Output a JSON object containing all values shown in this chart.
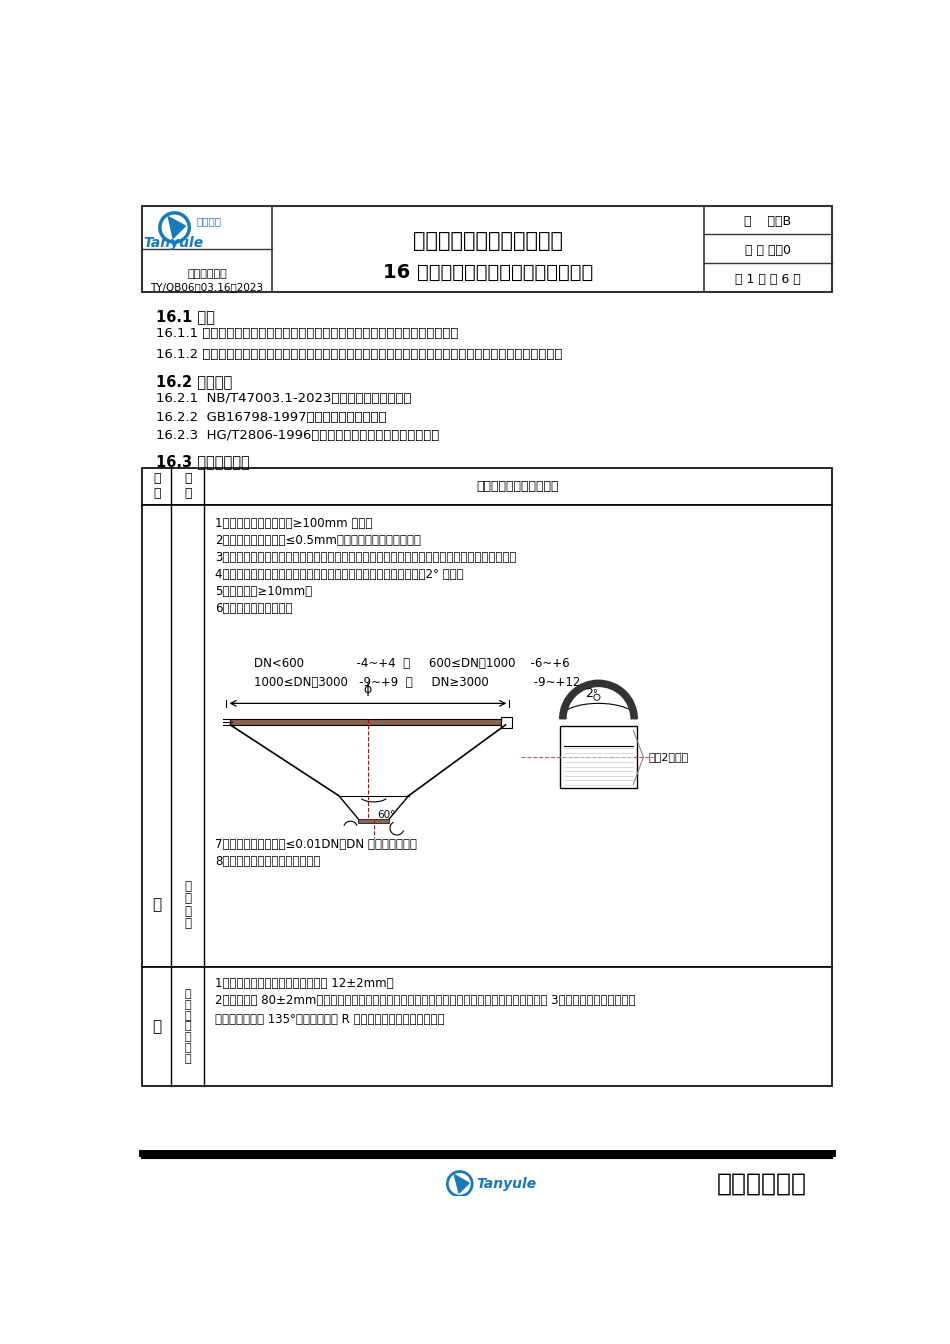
{
  "page_width": 9.5,
  "page_height": 13.44,
  "bg_color": "#ffffff",
  "header": {
    "title_main": "压力容器制造通用工艺守则",
    "title_sub": "16 不锈钢罐（食品类）工序验收准则",
    "code_label": "企业标准代码",
    "code_value": "TY/QB06－03.16－2023",
    "version_label": "版    本：B",
    "revision_label": "修 改 码：0",
    "page_label": "第 1 页 共 6 页"
  },
  "section_16_1_title": "16.1 总则",
  "section_16_1_1": "16.1.1 本准则为奥氏体不锈钢、超低碳不锈钢焊制罐（食品类）制造验收准则。",
  "section_16_1_2": "16.1.2 本准则未规定者则按《容器制造工艺守则》、《塔器制造工艺守则》、《换热器组装工艺守则》要求。",
  "section_16_2_title": "16.2 制定依据",
  "section_16_2_1": "16.2.1  NB/T47003.1-2023《钢制焊接常压容器》",
  "section_16_2_2": "16.2.2  GB16798-1997《食品机械安全卫生》",
  "section_16_2_3": "16.2.3  HG/T2806-1996《奥氏体不锈钢容器制造治理细则》",
  "section_16_3_title": "16.3 工序验收准则",
  "table_header_col3": "工序工艺内容及验收标准",
  "row1_seq": "一",
  "row1_item_lines": [
    "锥",
    "形",
    "封",
    "头"
  ],
  "row1_content_lines": [
    "1、拼接封头拼板宽度应≥100mm 以上。",
    "2、对接错边量应小于≤0.5mm，外包体错边应锤击复平。",
    "3、封头焊接成型后，封头焊缝（包括自动焊）均要内外先粗磨再进展复平。消退应力后再旋压。",
    "4、折边应圆整，无皱边，无勾头，外包体旋压封头直边应向外倾斜2° 左右。",
    "5、直边高度≥10mm。",
    "6、外圆周长误差范围。"
  ],
  "row1_dn_line1": "DN<600              -4~+4  ；     600≤DN＜1000    -6~+6",
  "row1_dn_line2": "1000≤DN＜3000   -9~+9  ；     DN≥3000            -9~+12",
  "row1_extra": [
    "7、最大与最小直径差≤0.01DN（DN 为封头内径）。",
    "8、外包锥体出料口应中压成形。"
  ],
  "row2_seq": "二",
  "row2_item_lines": [
    "人",
    "孔",
    "（",
    "左",
    "手",
    "性",
    "）"
  ],
  "row2_content1": "1、锥形封头人孔冲圈脱边直边高度 12±2mm。",
  "row2_content2": "2、人孔总高 80±2mm（人孔边至封头最低点）。每批罐尺寸必需统一，保温人孔按图纸要求。孔 3、人孔盖开启方向一般为",
  "row2_content3": "左手，开启角度 135°。（压杆后端 R 角要用线切割加工，以便统一",
  "footer_company": "江苏天宇机械",
  "diag_label": "倾斜2度左右"
}
